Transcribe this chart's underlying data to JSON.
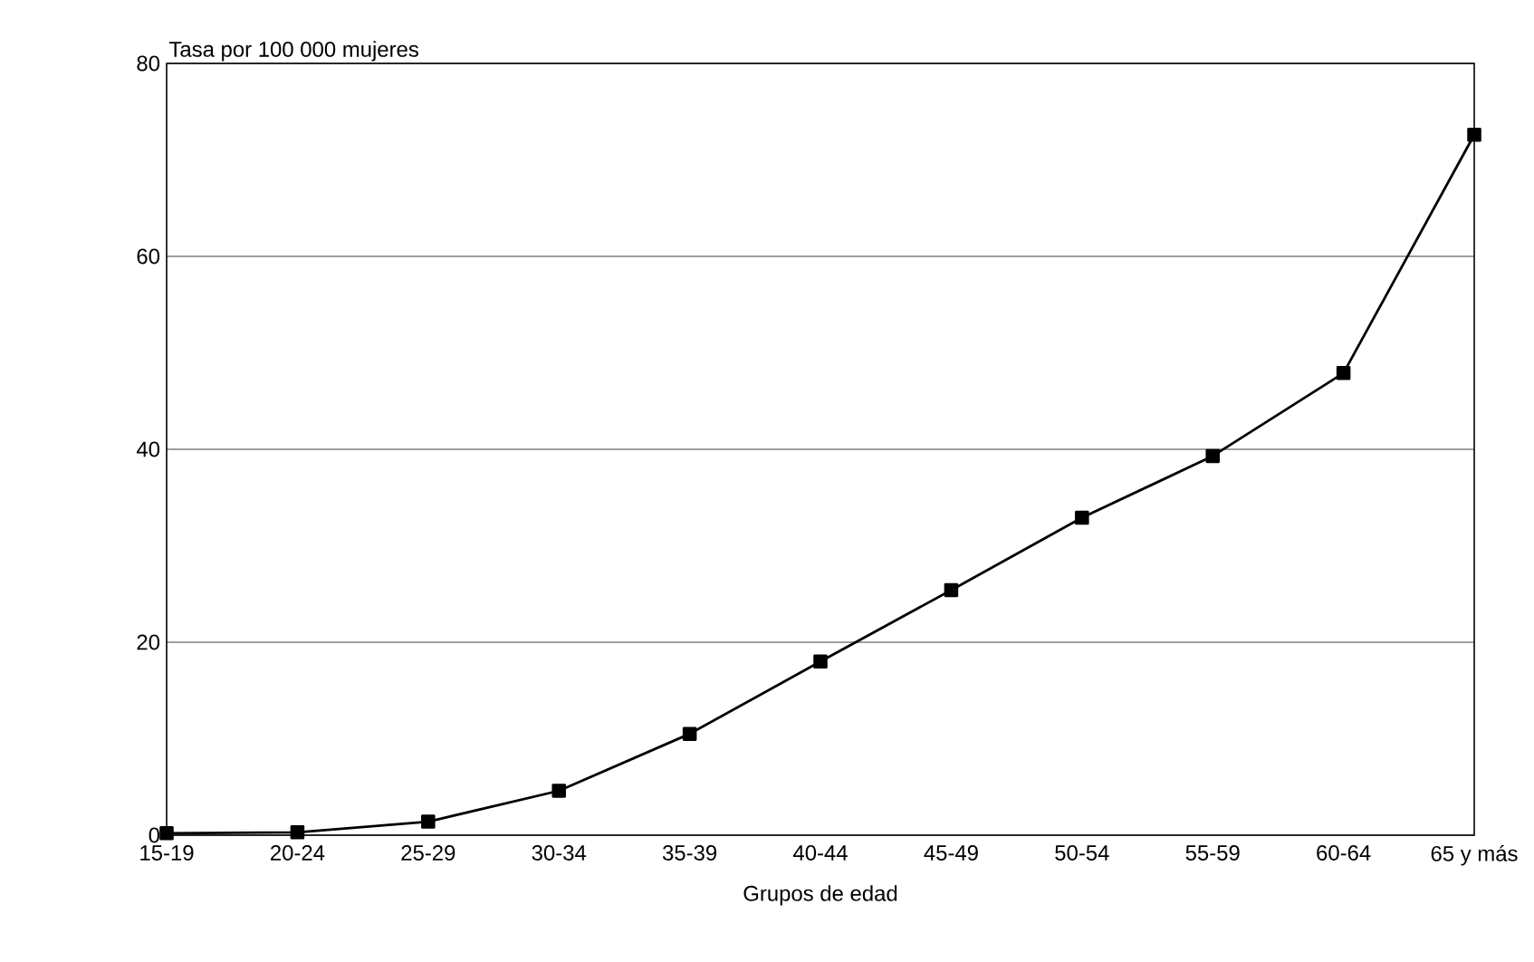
{
  "chart_data": {
    "type": "line",
    "xlabel": "Grupos de edad",
    "ylabel": "Tasa por 100 000 mujeres",
    "categories": [
      "15-19",
      "20-24",
      "25-29",
      "30-34",
      "35-39",
      "40-44",
      "45-49",
      "50-54",
      "55-59",
      "60-64",
      "65 y más"
    ],
    "series": [
      {
        "color": "#000000",
        "values": [
          0.2,
          0.3,
          1.4,
          4.6,
          10.5,
          18.0,
          25.4,
          32.9,
          39.3,
          47.9,
          72.6
        ]
      }
    ],
    "ylim": [
      0,
      80
    ],
    "yticks": [
      0,
      20,
      40,
      60,
      80
    ],
    "grid": "y",
    "marker": "square",
    "line_style": "solid"
  }
}
